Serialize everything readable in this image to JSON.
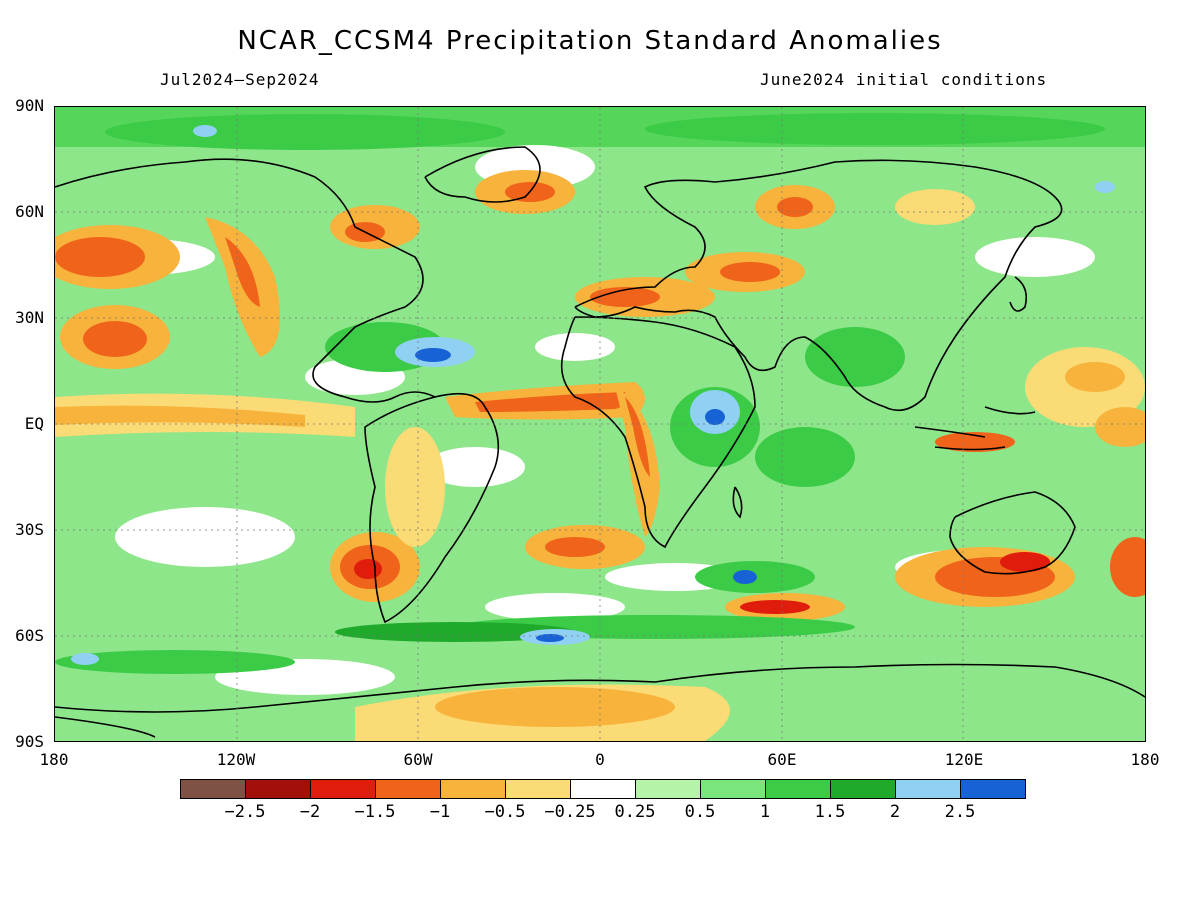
{
  "title": "NCAR_CCSM4 Precipitation Standard Anomalies",
  "period": "Jul2024–Sep2024",
  "init": "June2024 initial conditions",
  "lat_labels": [
    "90N",
    "60N",
    "30N",
    "EQ",
    "30S",
    "60S",
    "90S"
  ],
  "lon_labels": [
    "180",
    "120W",
    "60W",
    "0",
    "60E",
    "120E",
    "180"
  ],
  "legend": {
    "colors": [
      "#7f5245",
      "#a3100a",
      "#e01c0c",
      "#f0631a",
      "#f7b33b",
      "#fbdb76",
      "#ffffff",
      "#b5f3a8",
      "#7ae57a",
      "#3ccb47",
      "#1faa2c",
      "#8fd0f3",
      "#1762d4"
    ],
    "labels": [
      "−2.5",
      "−2",
      "−1.5",
      "−1",
      "−0.5",
      "−0.25",
      "0.25",
      "0.5",
      "1",
      "1.5",
      "2",
      "2.5"
    ]
  }
}
